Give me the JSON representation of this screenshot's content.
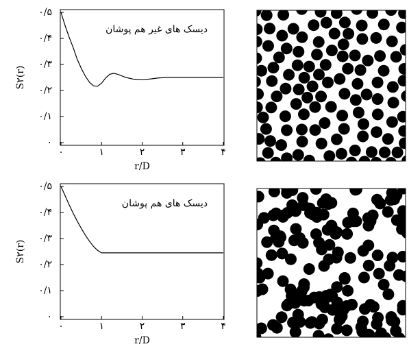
{
  "chart_data": [
    {
      "type": "line",
      "annotation": "دیسک های غیر هم پوشان",
      "x_label": "r/D",
      "y_label": "S۲(r)",
      "x": [
        0,
        0.1,
        0.2,
        0.3,
        0.4,
        0.5,
        0.6,
        0.7,
        0.8,
        0.9,
        1.0,
        1.1,
        1.2,
        1.3,
        1.4,
        1.6,
        1.8,
        2.0,
        2.2,
        2.4,
        2.6,
        2.8,
        3.0,
        3.5,
        4.0
      ],
      "values": [
        0.5,
        0.45,
        0.405,
        0.365,
        0.32,
        0.285,
        0.255,
        0.232,
        0.218,
        0.216,
        0.228,
        0.248,
        0.262,
        0.266,
        0.262,
        0.25,
        0.243,
        0.241,
        0.244,
        0.248,
        0.25,
        0.25,
        0.25,
        0.25,
        0.25
      ],
      "color": "#000000",
      "xlim": [
        0,
        4
      ],
      "ylim": [
        0,
        0.5
      ],
      "xticks": [
        {
          "value": 0,
          "label": "۰"
        },
        {
          "value": 1,
          "label": "۱"
        },
        {
          "value": 2,
          "label": "۲"
        },
        {
          "value": 3,
          "label": "۳"
        },
        {
          "value": 4,
          "label": "۴"
        }
      ],
      "yticks": [
        {
          "value": 0,
          "label": "۰"
        },
        {
          "value": 0.1,
          "label": "۰/۱"
        },
        {
          "value": 0.2,
          "label": "۰/۲"
        },
        {
          "value": 0.3,
          "label": "۰/۳"
        },
        {
          "value": 0.4,
          "label": "۰/۴"
        },
        {
          "value": 0.5,
          "label": "۰/۵"
        }
      ]
    },
    {
      "type": "line",
      "annotation": "دیسک های هم پوشان",
      "x_label": "r/D",
      "y_label": "S۲(r)",
      "x": [
        0,
        0.1,
        0.2,
        0.3,
        0.4,
        0.5,
        0.6,
        0.7,
        0.8,
        0.9,
        1.0,
        1.5,
        2.0,
        3.0,
        4.0
      ],
      "values": [
        0.5,
        0.465,
        0.43,
        0.397,
        0.367,
        0.339,
        0.313,
        0.29,
        0.27,
        0.255,
        0.245,
        0.245,
        0.245,
        0.245,
        0.245
      ],
      "color": "#000000",
      "xlim": [
        0,
        4
      ],
      "ylim": [
        0,
        0.5
      ],
      "xticks": [
        {
          "value": 0,
          "label": "۰"
        },
        {
          "value": 1,
          "label": "۱"
        },
        {
          "value": 2,
          "label": "۲"
        },
        {
          "value": 3,
          "label": "۳"
        },
        {
          "value": 4,
          "label": "۴"
        }
      ],
      "yticks": [
        {
          "value": 0,
          "label": "۰"
        },
        {
          "value": 0.1,
          "label": "۰/۱"
        },
        {
          "value": 0.2,
          "label": "۰/۲"
        },
        {
          "value": 0.3,
          "label": "۰/۳"
        },
        {
          "value": 0.4,
          "label": "۰/۴"
        },
        {
          "value": 0.5,
          "label": "۰/۵"
        }
      ]
    }
  ]
}
